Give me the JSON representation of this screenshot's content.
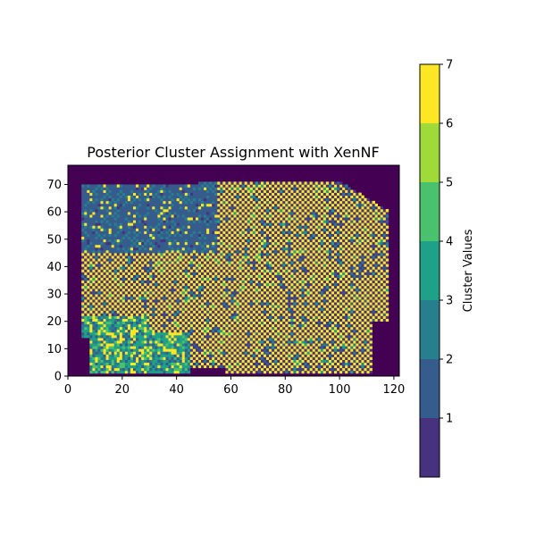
{
  "chart_data": {
    "type": "heatmap",
    "title": "Posterior Cluster Assignment with XenNF",
    "xlabel": "",
    "ylabel": "",
    "xlim": [
      0,
      122
    ],
    "ylim": [
      0,
      77
    ],
    "x_ticks": [
      0,
      20,
      40,
      60,
      80,
      100,
      120
    ],
    "y_ticks": [
      0,
      10,
      20,
      30,
      40,
      50,
      60,
      70
    ],
    "origin": "lower",
    "grid": false,
    "colorbar": {
      "label": "Cluster Values",
      "range": [
        0,
        7
      ],
      "ticks": [
        1,
        2,
        3,
        4,
        5,
        6,
        7
      ],
      "levels": [
        0,
        1,
        2,
        3,
        4,
        5,
        6,
        7
      ],
      "colormap": "viridis",
      "colors": [
        "#440154",
        "#46327e",
        "#365c8d",
        "#277f8e",
        "#1fa187",
        "#4ac16d",
        "#a0da39",
        "#fde725"
      ]
    },
    "background_value": 0,
    "regions": [
      {
        "name": "upper-left cluster (values 2-3)",
        "x": [
          5,
          55
        ],
        "y": [
          45,
          73
        ],
        "dominant_values": [
          2,
          3
        ],
        "pattern": "checkerboard"
      },
      {
        "name": "central/right mixed region (values 1 and 7)",
        "x": [
          45,
          117
        ],
        "y": [
          1,
          71
        ],
        "dominant_values": [
          1,
          7
        ],
        "pattern": "checkerboard"
      },
      {
        "name": "lower-left band (values 3-5)",
        "x": [
          5,
          55
        ],
        "y": [
          2,
          25
        ],
        "dominant_values": [
          3,
          4,
          5
        ],
        "pattern": "mottled"
      }
    ]
  }
}
